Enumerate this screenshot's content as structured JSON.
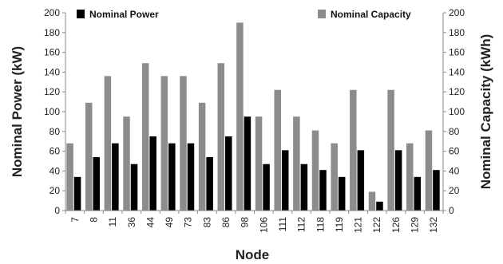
{
  "chart_data": {
    "type": "bar",
    "title": "",
    "xlabel": "Node",
    "ylabel_left": "Nominal Power (kW)",
    "ylabel_right": "Nominal Capacity (kWh)",
    "ylim": [
      0,
      200
    ],
    "yticks": [
      "0",
      "20",
      "40",
      "60",
      "80",
      "100",
      "120",
      "140",
      "160",
      "180",
      "200"
    ],
    "grid": false,
    "legend_placement": "top",
    "categories": [
      "7",
      "8",
      "11",
      "36",
      "44",
      "49",
      "73",
      "83",
      "86",
      "98",
      "106",
      "111",
      "112",
      "118",
      "119",
      "121",
      "122",
      "126",
      "129",
      "132"
    ],
    "series": [
      {
        "name": "Nominal Power",
        "color": "#000000",
        "axis": "left",
        "values": [
          34,
          54,
          68,
          47,
          75,
          68,
          68,
          54,
          75,
          95,
          47,
          61,
          47,
          41,
          34,
          61,
          9,
          61,
          34,
          41
        ]
      },
      {
        "name": "Nominal Capacity",
        "color": "#8c8c8c",
        "axis": "right",
        "values": [
          68,
          109,
          136,
          95,
          149,
          136,
          136,
          109,
          149,
          190,
          95,
          122,
          95,
          81,
          68,
          122,
          19,
          122,
          68,
          81
        ]
      }
    ]
  }
}
